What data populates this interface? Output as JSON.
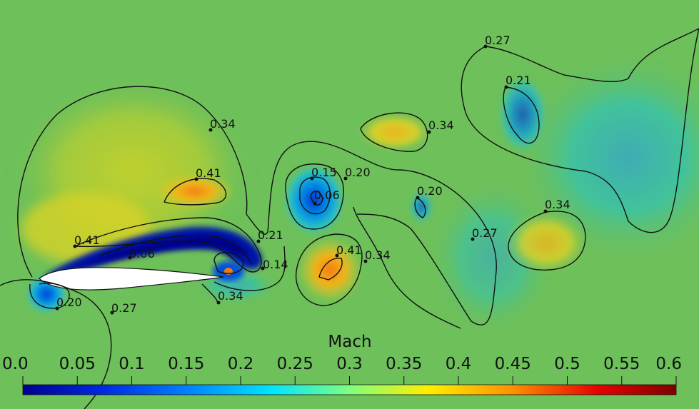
{
  "chart_data": {
    "type": "heatmap",
    "title": "",
    "colorbar": {
      "label": "Mach",
      "range": [
        0.0,
        0.6
      ],
      "ticks": [
        "0.0",
        "0.05",
        "0.1",
        "0.15",
        "0.2",
        "0.25",
        "0.3",
        "0.35",
        "0.4",
        "0.45",
        "0.5",
        "0.55",
        "0.6"
      ],
      "colormap": [
        "#00008f",
        "#0040ff",
        "#00e5ff",
        "#7fff7f",
        "#ffef00",
        "#ff6000",
        "#c00000",
        "#7f0000"
      ]
    },
    "background_color": "#6dc05a",
    "contour_labels": [
      "0.34",
      "0.41",
      "0.41",
      "0.06",
      "0.21",
      "0.14",
      "0.20",
      "0.27",
      "0.34",
      "0.15",
      "0.20",
      "0.06",
      "0.41",
      "0.34",
      "0.34",
      "0.20",
      "0.27",
      "0.27",
      "0.21",
      "0.34",
      "0.0"
    ]
  }
}
